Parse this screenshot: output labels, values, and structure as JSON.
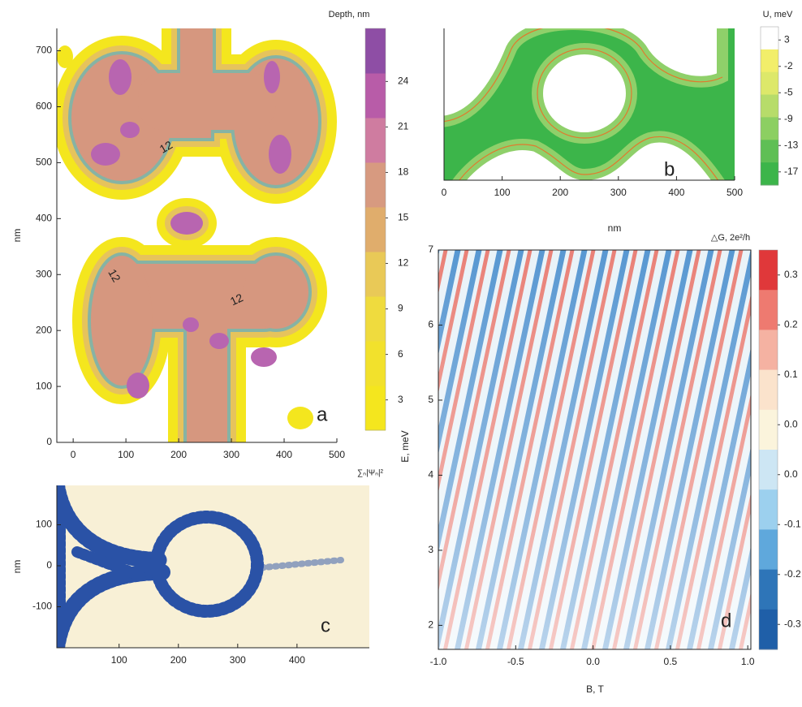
{
  "chart_data": [
    {
      "type": "contour",
      "label": "a",
      "ylabel": "nm",
      "xlim": [
        -31,
        500
      ],
      "xticks": [
        0,
        100,
        200,
        300,
        400,
        500
      ],
      "ylim": [
        0,
        740
      ],
      "yticks": [
        0,
        100,
        200,
        300,
        400,
        500,
        600,
        700
      ],
      "annotations": [
        "12",
        "12",
        "12"
      ],
      "colorbar": {
        "title": "Depth,  nm",
        "lim": [
          1,
          27.5
        ],
        "ticks": [
          3,
          6,
          9,
          12,
          15,
          18,
          21,
          24
        ],
        "colors": [
          "#f4e61e",
          "#f2e12c",
          "#efdb3e",
          "#e9c957",
          "#e0ad6c",
          "#d79a80",
          "#cf7ca0",
          "#b85ca8",
          "#8e4ea5"
        ]
      }
    },
    {
      "type": "contour",
      "label": "b",
      "xlabel": "nm",
      "xlim": [
        0,
        500
      ],
      "xticks": [
        0,
        100,
        200,
        300,
        400,
        500
      ],
      "colorbar": {
        "title": "U, meV",
        "ticks": [
          3,
          -2,
          -5,
          -9,
          -13,
          -17
        ],
        "colors": [
          "#ffffff",
          "#f2ee6a",
          "#dde86a",
          "#b7dc6a",
          "#8ccf62",
          "#5fbf55",
          "#3cb54a"
        ]
      }
    },
    {
      "type": "contour",
      "label": "c",
      "title": "∑ₙ|Ψₙ|²",
      "ylabel": "nm",
      "xlim": [
        -5,
        522
      ],
      "xticks": [
        100,
        200,
        300,
        400
      ],
      "ylim": [
        -200,
        196
      ],
      "yticks": [
        -100,
        0,
        100
      ]
    },
    {
      "type": "heatmap",
      "label": "d",
      "xlabel": "B, T",
      "ylabel": "E, meV",
      "xlim": [
        -1,
        1.02
      ],
      "xticks": [
        {
          "value": -1,
          "label": "-1.0"
        },
        {
          "value": -0.5,
          "label": "-0.5"
        },
        {
          "value": 0,
          "label": "0.0"
        },
        {
          "value": 0.5,
          "label": "0.5"
        },
        {
          "value": 1,
          "label": "1.0"
        }
      ],
      "ylim": [
        1.68,
        7
      ],
      "yticks": [
        2,
        3,
        4,
        5,
        6,
        7
      ],
      "colorbar": {
        "title": "△G, 2e²/h",
        "ticks": [
          0.3,
          0.2,
          0.1,
          {
            "value": 0,
            "label": "0.0"
          },
          {
            "value": 0,
            "label": "0.0"
          },
          -0.1,
          -0.2,
          -0.3
        ],
        "colors": [
          "#e0383a",
          "#ee7a70",
          "#f5b2a2",
          "#fbe3cc",
          "#fbf4dc",
          "#cde6f4",
          "#9cd0ee",
          "#5fa8dc",
          "#2e75b8",
          "#1f5fa8"
        ]
      }
    }
  ]
}
